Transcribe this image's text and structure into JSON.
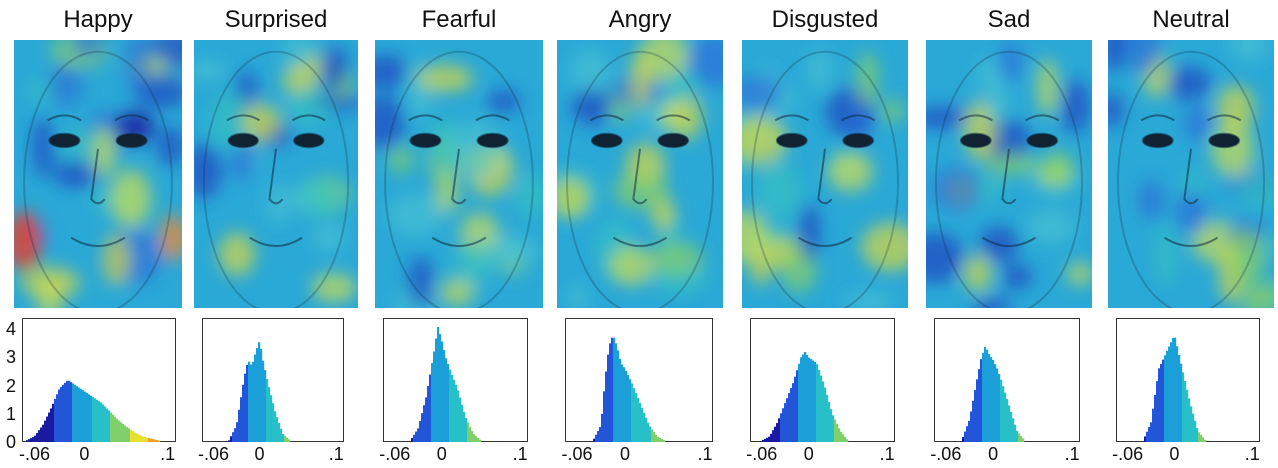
{
  "panels": [
    {
      "label": "Happy"
    },
    {
      "label": "Surprised"
    },
    {
      "label": "Fearful"
    },
    {
      "label": "Angry"
    },
    {
      "label": "Disgusted"
    },
    {
      "label": "Sad"
    },
    {
      "label": "Neutral"
    }
  ],
  "x_tick_labels": [
    "-.06",
    "0",
    ".1"
  ],
  "y_tick_labels": [
    "4",
    "3",
    "2",
    "1",
    "0"
  ],
  "colormap": [
    "#1a1aa0",
    "#2255d8",
    "#1a9fd8",
    "#27c0c8",
    "#7fd06a",
    "#e8e030",
    "#f0a020",
    "#e83010"
  ],
  "chart_data": [
    {
      "type": "area",
      "label": "Happy",
      "xlim": [
        -0.075,
        0.11
      ],
      "ylim": [
        0,
        4.4
      ],
      "x": [
        -0.07,
        -0.06,
        -0.05,
        -0.04,
        -0.03,
        -0.02,
        -0.01,
        0,
        0.01,
        0.02,
        0.03,
        0.04,
        0.05,
        0.06,
        0.07,
        0.08,
        0.09
      ],
      "y": [
        0.05,
        0.2,
        0.6,
        1.2,
        1.9,
        2.2,
        2.0,
        1.8,
        1.6,
        1.4,
        1.1,
        0.8,
        0.55,
        0.35,
        0.2,
        0.12,
        0.05
      ]
    },
    {
      "type": "area",
      "label": "Surprised",
      "xlim": [
        -0.075,
        0.11
      ],
      "ylim": [
        0,
        4.4
      ],
      "x": [
        -0.04,
        -0.03,
        -0.02,
        -0.015,
        -0.01,
        -0.005,
        0,
        0.005,
        0.01,
        0.02,
        0.03,
        0.04
      ],
      "y": [
        0.05,
        0.6,
        2.3,
        2.9,
        2.7,
        3.2,
        3.6,
        2.8,
        2.2,
        1.1,
        0.3,
        0.05
      ]
    },
    {
      "type": "area",
      "label": "Fearful",
      "xlim": [
        -0.075,
        0.11
      ],
      "ylim": [
        0,
        4.4
      ],
      "x": [
        -0.04,
        -0.03,
        -0.02,
        -0.01,
        -0.005,
        0,
        0.005,
        0.01,
        0.02,
        0.03,
        0.04,
        0.05
      ],
      "y": [
        0.05,
        0.5,
        1.6,
        3.2,
        4.1,
        3.6,
        3.0,
        2.6,
        1.9,
        0.9,
        0.3,
        0.05
      ]
    },
    {
      "type": "area",
      "label": "Angry",
      "xlim": [
        -0.075,
        0.11
      ],
      "ylim": [
        0,
        4.4
      ],
      "x": [
        -0.04,
        -0.03,
        -0.025,
        -0.02,
        -0.015,
        -0.01,
        -0.005,
        0,
        0.01,
        0.02,
        0.03,
        0.04,
        0.05
      ],
      "y": [
        0.05,
        0.6,
        2.2,
        3.4,
        3.8,
        3.4,
        2.8,
        2.6,
        2.0,
        1.3,
        0.6,
        0.2,
        0.05
      ]
    },
    {
      "type": "area",
      "label": "Disgusted",
      "xlim": [
        -0.075,
        0.11
      ],
      "ylim": [
        0,
        4.4
      ],
      "x": [
        -0.06,
        -0.05,
        -0.04,
        -0.03,
        -0.02,
        -0.01,
        -0.005,
        0,
        0.01,
        0.02,
        0.03,
        0.04,
        0.05
      ],
      "y": [
        0.05,
        0.2,
        0.7,
        1.4,
        2.1,
        3.0,
        3.2,
        3.0,
        2.8,
        2.0,
        1.0,
        0.4,
        0.05
      ]
    },
    {
      "type": "area",
      "label": "Sad",
      "xlim": [
        -0.075,
        0.11
      ],
      "ylim": [
        0,
        4.4
      ],
      "x": [
        -0.04,
        -0.03,
        -0.02,
        -0.015,
        -0.01,
        -0.005,
        0,
        0.005,
        0.01,
        0.02,
        0.03,
        0.04
      ],
      "y": [
        0.05,
        0.8,
        2.3,
        3.0,
        3.4,
        3.1,
        2.9,
        2.6,
        2.2,
        1.3,
        0.4,
        0.05
      ]
    },
    {
      "type": "area",
      "label": "Neutral",
      "xlim": [
        -0.075,
        0.11
      ],
      "ylim": [
        0,
        4.4
      ],
      "x": [
        -0.04,
        -0.03,
        -0.02,
        -0.01,
        -0.005,
        0,
        0.005,
        0.01,
        0.02,
        0.03,
        0.04
      ],
      "y": [
        0.05,
        0.7,
        2.6,
        3.2,
        3.5,
        3.8,
        3.2,
        2.6,
        1.4,
        0.4,
        0.05
      ]
    }
  ]
}
